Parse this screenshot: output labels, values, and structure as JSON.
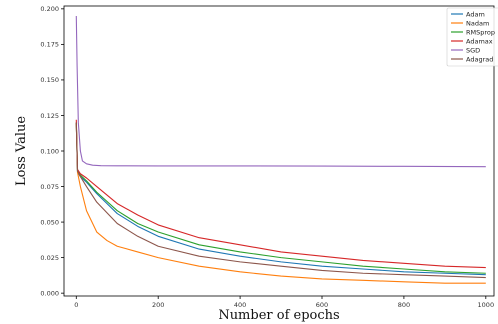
{
  "chart_data": {
    "type": "line",
    "title": "",
    "xlabel": "Number of epochs",
    "ylabel": "Loss Value",
    "xlim": [
      -30,
      1020
    ],
    "ylim": [
      -0.002,
      0.202
    ],
    "x_ticks": [
      0,
      200,
      400,
      600,
      800,
      1000
    ],
    "y_ticks": [
      0.0,
      0.025,
      0.05,
      0.075,
      0.1,
      0.125,
      0.15,
      0.175,
      0.2
    ],
    "x_tick_labels": [
      "0",
      "200",
      "400",
      "600",
      "800",
      "1000"
    ],
    "y_tick_labels": [
      "0.000",
      "0.025",
      "0.050",
      "0.075",
      "0.100",
      "0.125",
      "0.150",
      "0.175",
      "0.200"
    ],
    "grid": false,
    "legend_position": "top-right",
    "series": [
      {
        "name": "Adam",
        "color": "#1f77b4",
        "x": [
          0,
          3,
          10,
          25,
          50,
          100,
          150,
          200,
          300,
          400,
          500,
          600,
          700,
          800,
          900,
          1000
        ],
        "y": [
          0.12,
          0.085,
          0.082,
          0.078,
          0.07,
          0.056,
          0.047,
          0.04,
          0.031,
          0.026,
          0.022,
          0.019,
          0.017,
          0.015,
          0.014,
          0.013
        ]
      },
      {
        "name": "Nadam",
        "color": "#ff7f0e",
        "x": [
          0,
          3,
          10,
          25,
          50,
          75,
          100,
          150,
          200,
          300,
          400,
          500,
          600,
          700,
          800,
          900,
          1000
        ],
        "y": [
          0.12,
          0.085,
          0.075,
          0.058,
          0.043,
          0.037,
          0.033,
          0.029,
          0.025,
          0.019,
          0.015,
          0.012,
          0.01,
          0.009,
          0.008,
          0.007,
          0.007
        ]
      },
      {
        "name": "RMSprop",
        "color": "#2ca02c",
        "x": [
          0,
          3,
          10,
          25,
          50,
          100,
          150,
          200,
          300,
          400,
          500,
          600,
          700,
          800,
          900,
          1000
        ],
        "y": [
          0.12,
          0.086,
          0.083,
          0.079,
          0.071,
          0.058,
          0.049,
          0.043,
          0.034,
          0.029,
          0.025,
          0.022,
          0.019,
          0.017,
          0.015,
          0.014
        ]
      },
      {
        "name": "Adamax",
        "color": "#d62728",
        "x": [
          0,
          3,
          10,
          25,
          50,
          100,
          150,
          200,
          300,
          400,
          500,
          600,
          700,
          800,
          900,
          1000
        ],
        "y": [
          0.122,
          0.087,
          0.084,
          0.081,
          0.075,
          0.063,
          0.055,
          0.048,
          0.039,
          0.034,
          0.029,
          0.026,
          0.023,
          0.021,
          0.019,
          0.018
        ]
      },
      {
        "name": "SGD",
        "color": "#9467bd",
        "x": [
          0,
          2,
          5,
          10,
          15,
          25,
          40,
          60,
          100,
          200,
          400,
          600,
          800,
          1000
        ],
        "y": [
          0.195,
          0.16,
          0.12,
          0.1,
          0.093,
          0.091,
          0.09,
          0.0897,
          0.0896,
          0.0895,
          0.0895,
          0.0894,
          0.0892,
          0.089
        ]
      },
      {
        "name": "Adagrad",
        "color": "#8c564b",
        "x": [
          0,
          3,
          10,
          25,
          50,
          100,
          150,
          200,
          300,
          400,
          500,
          600,
          700,
          800,
          900,
          1000
        ],
        "y": [
          0.12,
          0.086,
          0.082,
          0.075,
          0.064,
          0.049,
          0.04,
          0.033,
          0.026,
          0.022,
          0.019,
          0.016,
          0.014,
          0.013,
          0.012,
          0.011
        ]
      }
    ]
  }
}
